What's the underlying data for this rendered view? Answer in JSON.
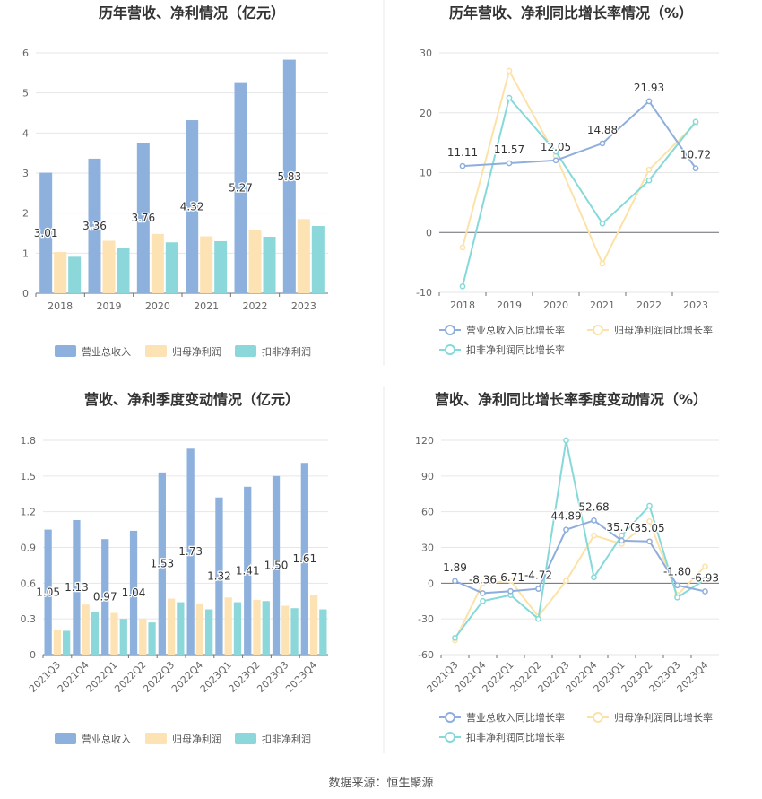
{
  "colors": {
    "revenue": "#8eb0dd",
    "parent_net": "#fde2b3",
    "deducted_net": "#8bd7d9",
    "revenue_line": "#8eaedd",
    "parent_line": "#fde2a8",
    "deducted_line": "#86d9d9",
    "grid": "#e6e6e6",
    "axis": "#6e7079",
    "divider": "#e8e8e8"
  },
  "source_text": "数据来源：恒生聚源",
  "chart_data": [
    {
      "type": "bar",
      "title": "历年营收、净利情况（亿元）",
      "categories": [
        "2018",
        "2019",
        "2020",
        "2021",
        "2022",
        "2023"
      ],
      "ylim": [
        0,
        6
      ],
      "yticks": [
        "0",
        "1",
        "2",
        "3",
        "4",
        "5",
        "6"
      ],
      "series": [
        {
          "name": "营业总收入",
          "values": [
            3.01,
            3.36,
            3.76,
            4.32,
            5.27,
            5.83
          ],
          "labels": [
            "3.01",
            "3.36",
            "3.76",
            "4.32",
            "5.27",
            "5.83"
          ]
        },
        {
          "name": "归母净利润",
          "values": [
            1.03,
            1.31,
            1.48,
            1.42,
            1.57,
            1.85
          ]
        },
        {
          "name": "扣非净利润",
          "values": [
            0.91,
            1.12,
            1.27,
            1.3,
            1.41,
            1.68
          ]
        }
      ],
      "legend_position": "bottom"
    },
    {
      "type": "line",
      "title": "历年营收、净利同比增长率情况（%）",
      "categories": [
        "2018",
        "2019",
        "2020",
        "2021",
        "2022",
        "2023"
      ],
      "ylim": [
        -10,
        30
      ],
      "yticks": [
        "-10",
        "0",
        "10",
        "20",
        "30"
      ],
      "series": [
        {
          "name": "营业总收入同比增长率",
          "values": [
            11.11,
            11.57,
            12.05,
            14.88,
            21.93,
            10.72
          ],
          "labels": [
            "11.11",
            "11.57",
            "12.05",
            "14.88",
            "21.93",
            "10.72"
          ]
        },
        {
          "name": "归母净利润同比增长率",
          "values": [
            -2.5,
            27.0,
            12.8,
            -5.2,
            10.5,
            18.2
          ]
        },
        {
          "name": "扣非净利润同比增长率",
          "values": [
            -9.0,
            22.5,
            13.5,
            1.5,
            8.7,
            18.5
          ]
        }
      ],
      "legend_position": "bottom"
    },
    {
      "type": "bar",
      "title": "营收、净利季度变动情况（亿元）",
      "categories": [
        "2021Q3",
        "2021Q4",
        "2022Q1",
        "2022Q2",
        "2022Q3",
        "2022Q4",
        "2023Q1",
        "2023Q2",
        "2023Q3",
        "2023Q4"
      ],
      "ylim": [
        0,
        1.8
      ],
      "yticks": [
        "0",
        "0.3",
        "0.6",
        "0.9",
        "1.2",
        "1.5",
        "1.8"
      ],
      "series": [
        {
          "name": "营业总收入",
          "values": [
            1.05,
            1.13,
            0.97,
            1.04,
            1.53,
            1.73,
            1.32,
            1.41,
            1.5,
            1.61
          ],
          "labels": [
            "1.05",
            "1.13",
            "0.97",
            "1.04",
            "1.53",
            "1.73",
            "1.32",
            "1.41",
            "1.50",
            "1.61"
          ]
        },
        {
          "name": "归母净利润",
          "values": [
            0.21,
            0.42,
            0.35,
            0.3,
            0.47,
            0.43,
            0.48,
            0.46,
            0.41,
            0.5
          ]
        },
        {
          "name": "扣非净利润",
          "values": [
            0.2,
            0.36,
            0.3,
            0.27,
            0.44,
            0.38,
            0.44,
            0.45,
            0.39,
            0.38
          ]
        }
      ],
      "legend_position": "bottom"
    },
    {
      "type": "line",
      "title": "营收、净利同比增长率季度变动情况（%）",
      "categories": [
        "2021Q3",
        "2021Q4",
        "2022Q1",
        "2022Q2",
        "2022Q3",
        "2022Q4",
        "2023Q1",
        "2023Q2",
        "2023Q3",
        "2023Q4"
      ],
      "ylim": [
        -60,
        120
      ],
      "yticks": [
        "-60",
        "-30",
        "0",
        "30",
        "60",
        "90",
        "120"
      ],
      "series": [
        {
          "name": "营业总收入同比增长率",
          "values": [
            1.89,
            -8.36,
            -6.71,
            -4.72,
            44.89,
            52.68,
            35.7,
            35.05,
            -1.8,
            -6.93
          ],
          "labels": [
            "1.89",
            "-8.36",
            "-6.71",
            "-4.72",
            "44.89",
            "52.68",
            "35.70",
            "35.05",
            "-1.80",
            "-6.93"
          ]
        },
        {
          "name": "归母净利润同比增长率",
          "values": [
            -48,
            0,
            2,
            -28,
            2,
            40,
            33,
            52,
            -10,
            14
          ]
        },
        {
          "name": "扣非净利润同比增长率",
          "values": [
            -46,
            -15,
            -10,
            -30,
            120,
            5,
            40,
            65,
            -12,
            3
          ]
        }
      ],
      "legend_position": "bottom"
    }
  ]
}
